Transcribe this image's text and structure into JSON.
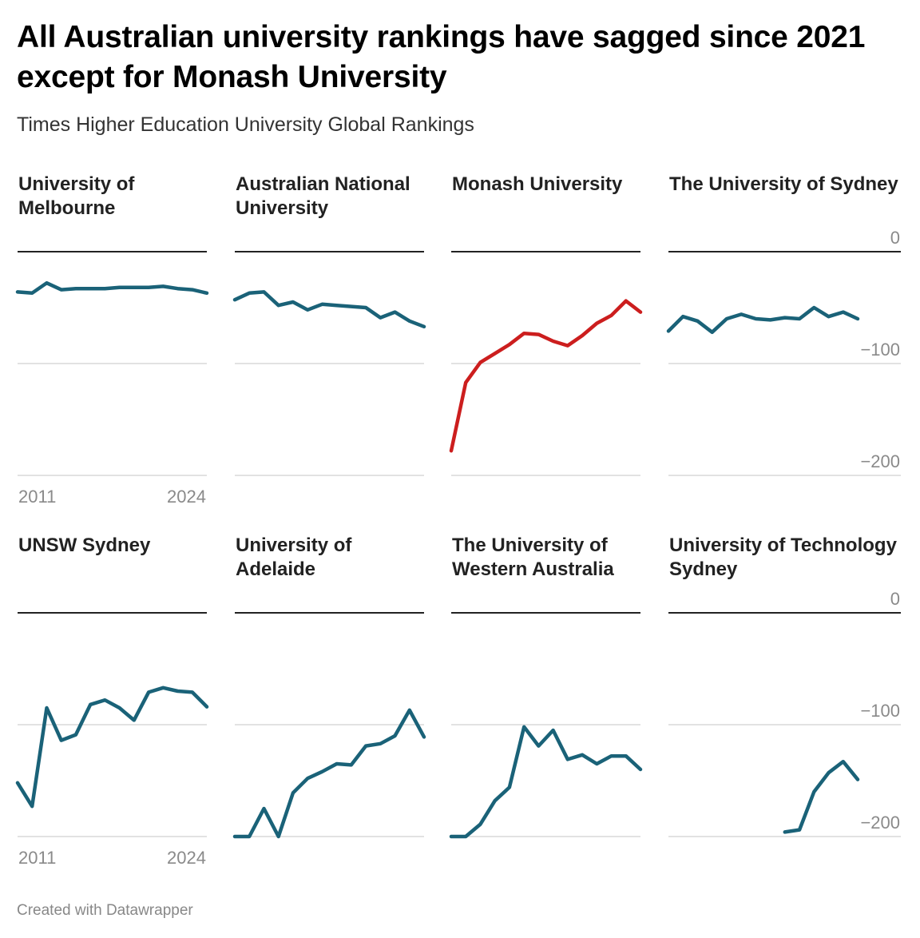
{
  "title": "All Australian university rankings have sagged since 2021 except for Monash University",
  "subtitle": "Times Higher Education University Global Rankings",
  "footer": "Created with Datawrapper",
  "colors": {
    "default_line": "#1a6278",
    "highlight_line": "#cc1e1e",
    "grid": "#d9d9d9",
    "zero_line": "#222222",
    "tick_text": "#8a8a8a"
  },
  "chart_data": {
    "type": "line",
    "layout": "small-multiples",
    "x_ticks": [
      "2011",
      "2024"
    ],
    "y_ticks": [
      0,
      -100,
      -200
    ],
    "y_tick_labels": [
      "0",
      "−100",
      "−200"
    ],
    "ylim": [
      -200,
      0
    ],
    "xlim": [
      2011,
      2024
    ],
    "panels": [
      {
        "name": "University of Melbourne",
        "title_lines": [
          "University of",
          "Melbourne"
        ],
        "highlight": false,
        "x": [
          2011,
          2012,
          2013,
          2014,
          2015,
          2016,
          2017,
          2018,
          2019,
          2020,
          2021,
          2022,
          2023,
          2024
        ],
        "y": [
          -36,
          -37,
          -28,
          -34,
          -33,
          -33,
          -33,
          -32,
          -32,
          -32,
          -31,
          -33,
          -34,
          -37
        ]
      },
      {
        "name": "Australian National University",
        "title_lines": [
          "Australian National",
          "University"
        ],
        "highlight": false,
        "x": [
          2011,
          2012,
          2013,
          2014,
          2015,
          2016,
          2017,
          2018,
          2019,
          2020,
          2021,
          2022,
          2023,
          2024
        ],
        "y": [
          -43,
          -37,
          -36,
          -48,
          -45,
          -52,
          -47,
          -48,
          -49,
          -50,
          -59,
          -54,
          -62,
          -67
        ]
      },
      {
        "name": "Monash University",
        "title_lines": [
          "Monash University"
        ],
        "highlight": true,
        "x": [
          2011,
          2012,
          2013,
          2014,
          2015,
          2016,
          2017,
          2018,
          2019,
          2020,
          2021,
          2022,
          2023,
          2024
        ],
        "y": [
          -178,
          -117,
          -99,
          -91,
          -83,
          -73,
          -74,
          -80,
          -84,
          -75,
          -64,
          -57,
          -44,
          -54
        ]
      },
      {
        "name": "The University of Sydney",
        "title_lines": [
          "The University of Sydney"
        ],
        "highlight": false,
        "x": [
          2011,
          2012,
          2013,
          2014,
          2015,
          2016,
          2017,
          2018,
          2019,
          2020,
          2021,
          2022,
          2023,
          2024
        ],
        "y": [
          -71,
          -58,
          -62,
          -72,
          -60,
          -56,
          -60,
          -61,
          -59,
          -60,
          -50,
          -58,
          -54,
          -60
        ]
      },
      {
        "name": "UNSW Sydney",
        "title_lines": [
          "UNSW Sydney"
        ],
        "highlight": false,
        "x": [
          2011,
          2012,
          2013,
          2014,
          2015,
          2016,
          2017,
          2018,
          2019,
          2020,
          2021,
          2022,
          2023,
          2024
        ],
        "y": [
          -152,
          -173,
          -85,
          -114,
          -109,
          -82,
          -78,
          -85,
          -96,
          -71,
          -67,
          -70,
          -71,
          -84
        ]
      },
      {
        "name": "University of Adelaide",
        "title_lines": [
          "University of",
          "Adelaide"
        ],
        "highlight": false,
        "x": [
          2011,
          2012,
          2013,
          2014,
          2015,
          2016,
          2017,
          2018,
          2019,
          2020,
          2021,
          2022,
          2023,
          2024
        ],
        "y": [
          -200,
          -200,
          -175,
          -200,
          -161,
          -148,
          -142,
          -135,
          -136,
          -119,
          -117,
          -110,
          -87,
          -111
        ]
      },
      {
        "name": "The University of Western Australia",
        "title_lines": [
          "The University of",
          "Western Australia"
        ],
        "highlight": false,
        "x": [
          2011,
          2012,
          2013,
          2014,
          2015,
          2016,
          2017,
          2018,
          2019,
          2020,
          2021,
          2022,
          2023,
          2024
        ],
        "y": [
          -200,
          -200,
          -189,
          -168,
          -156,
          -102,
          -119,
          -105,
          -131,
          -127,
          -135,
          -128,
          -128,
          -140
        ]
      },
      {
        "name": "University of Technology Sydney",
        "title_lines": [
          "University of Technology",
          "Sydney"
        ],
        "highlight": false,
        "x": [
          2019,
          2020,
          2021,
          2022,
          2023,
          2024
        ],
        "y": [
          -196,
          -194,
          -160,
          -143,
          -133,
          -149
        ]
      }
    ]
  }
}
